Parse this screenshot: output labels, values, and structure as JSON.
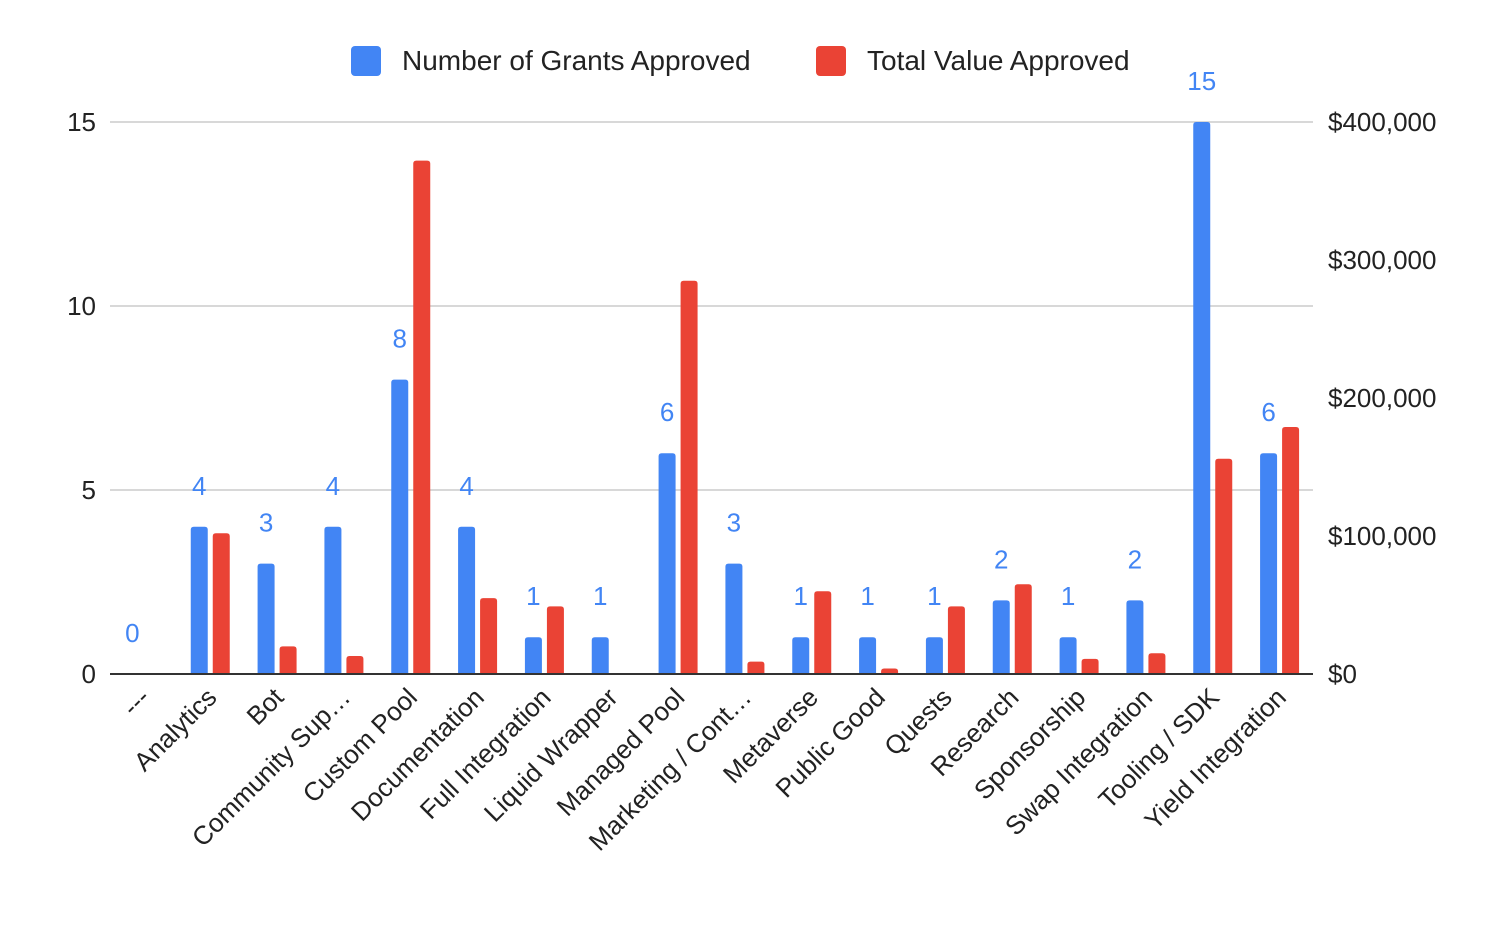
{
  "chart_data": {
    "type": "bar",
    "title": "",
    "categories": [
      "---",
      "Analytics",
      "Bot",
      "Community Sup…",
      "Custom Pool",
      "Documentation",
      "Full Integration",
      "Liquid Wrapper",
      "Managed Pool",
      "Marketing / Cont…",
      "Metaverse",
      "Public Good",
      "Quests",
      "Research",
      "Sponsorship",
      "Swap Integration",
      "Tooling / SDK",
      "Yield Integration"
    ],
    "series": [
      {
        "name": "Number of Grants Approved",
        "axis": "left",
        "color": "#4285f4",
        "values": [
          0,
          4,
          3,
          4,
          8,
          4,
          1,
          1,
          6,
          3,
          1,
          1,
          1,
          2,
          1,
          2,
          15,
          6
        ],
        "data_labels": [
          "0",
          "4",
          "3",
          "4",
          "8",
          "4",
          "1",
          "1",
          "6",
          "3",
          "1",
          "1",
          "1",
          "2",
          "1",
          "2",
          "15",
          "6"
        ]
      },
      {
        "name": "Total Value Approved",
        "axis": "right",
        "color": "#ea4335",
        "values": [
          0,
          102000,
          20000,
          13000,
          372000,
          55000,
          49000,
          0,
          285000,
          9000,
          60000,
          4000,
          49000,
          65000,
          11000,
          15000,
          156000,
          179000
        ]
      }
    ],
    "left_axis": {
      "min": 0,
      "max": 15,
      "ticks": [
        0,
        5,
        10,
        15
      ],
      "tick_labels": [
        "0",
        "5",
        "10",
        "15"
      ]
    },
    "right_axis": {
      "min": 0,
      "max": 400000,
      "ticks": [
        0,
        100000,
        200000,
        300000,
        400000
      ],
      "tick_labels": [
        "$0",
        "$100,000",
        "$200,000",
        "$300,000",
        "$400,000"
      ]
    },
    "grid": true,
    "legend_position": "top"
  }
}
